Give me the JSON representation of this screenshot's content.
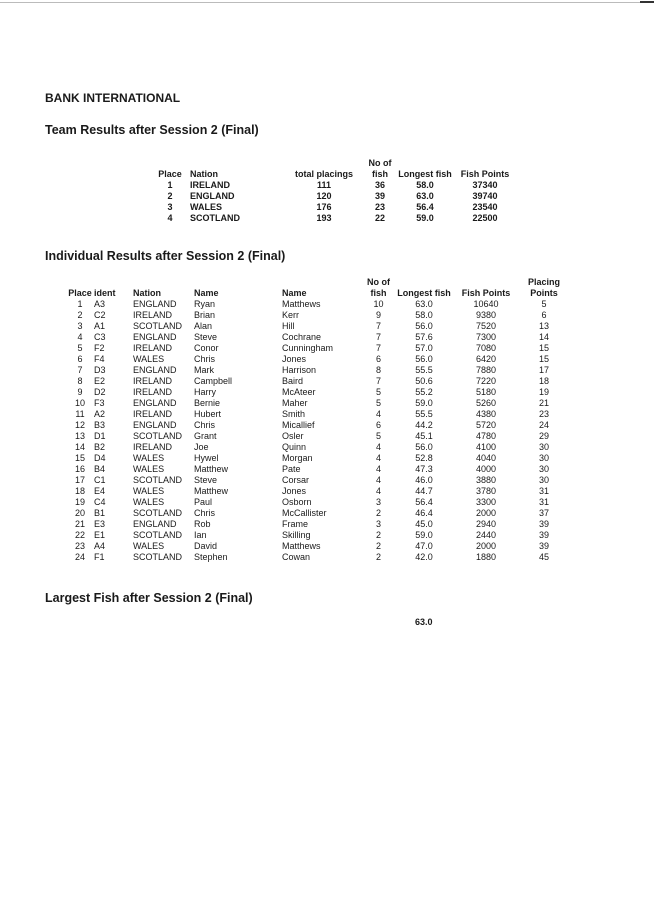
{
  "title": "BANK INTERNATIONAL",
  "team": {
    "heading": "Team Results after Session 2 (Final)",
    "header_top": {
      "fish": "No of"
    },
    "headers": [
      "Place",
      "Nation",
      "total placings",
      "fish",
      "Longest fish",
      "Fish Points"
    ],
    "rows": [
      [
        "1",
        "IRELAND",
        "111",
        "36",
        "58.0",
        "37340"
      ],
      [
        "2",
        "ENGLAND",
        "120",
        "39",
        "63.0",
        "39740"
      ],
      [
        "3",
        "WALES",
        "176",
        "23",
        "56.4",
        "23540"
      ],
      [
        "4",
        "SCOTLAND",
        "193",
        "22",
        "59.0",
        "22500"
      ]
    ]
  },
  "individual": {
    "heading": "Individual Results after Session 2 (Final)",
    "header_top": {
      "fish": "No of",
      "placing": "Placing"
    },
    "headers": [
      "Place",
      "ident",
      "Nation",
      "Name",
      "Name",
      "fish",
      "Longest fish",
      "Fish Points",
      "Points"
    ],
    "rows": [
      [
        "1",
        "A3",
        "ENGLAND",
        "Ryan",
        "Matthews",
        "10",
        "63.0",
        "10640",
        "5"
      ],
      [
        "2",
        "C2",
        "IRELAND",
        "Brian",
        "Kerr",
        "9",
        "58.0",
        "9380",
        "6"
      ],
      [
        "3",
        "A1",
        "SCOTLAND",
        "Alan",
        "Hill",
        "7",
        "56.0",
        "7520",
        "13"
      ],
      [
        "4",
        "C3",
        "ENGLAND",
        "Steve",
        "Cochrane",
        "7",
        "57.6",
        "7300",
        "14"
      ],
      [
        "5",
        "F2",
        "IRELAND",
        "Conor",
        "Cunningham",
        "7",
        "57.0",
        "7080",
        "15"
      ],
      [
        "6",
        "F4",
        "WALES",
        "Chris",
        "Jones",
        "6",
        "56.0",
        "6420",
        "15"
      ],
      [
        "7",
        "D3",
        "ENGLAND",
        "Mark",
        "Harrison",
        "8",
        "55.5",
        "7880",
        "17"
      ],
      [
        "8",
        "E2",
        "IRELAND",
        "Campbell",
        "Baird",
        "7",
        "50.6",
        "7220",
        "18"
      ],
      [
        "9",
        "D2",
        "IRELAND",
        "Harry",
        "McAteer",
        "5",
        "55.2",
        "5180",
        "19"
      ],
      [
        "10",
        "F3",
        "ENGLAND",
        "Bernie",
        "Maher",
        "5",
        "59.0",
        "5260",
        "21"
      ],
      [
        "11",
        "A2",
        "IRELAND",
        "Hubert",
        "Smith",
        "4",
        "55.5",
        "4380",
        "23"
      ],
      [
        "12",
        "B3",
        "ENGLAND",
        "Chris",
        "Micallief",
        "6",
        "44.2",
        "5720",
        "24"
      ],
      [
        "13",
        "D1",
        "SCOTLAND",
        "Grant",
        "Osler",
        "5",
        "45.1",
        "4780",
        "29"
      ],
      [
        "14",
        "B2",
        "IRELAND",
        "Joe",
        "Quinn",
        "4",
        "56.0",
        "4100",
        "30"
      ],
      [
        "15",
        "D4",
        "WALES",
        "Hywel",
        "Morgan",
        "4",
        "52.8",
        "4040",
        "30"
      ],
      [
        "16",
        "B4",
        "WALES",
        "Matthew",
        "Pate",
        "4",
        "47.3",
        "4000",
        "30"
      ],
      [
        "17",
        "C1",
        "SCOTLAND",
        "Steve",
        "Corsar",
        "4",
        "46.0",
        "3880",
        "30"
      ],
      [
        "18",
        "E4",
        "WALES",
        "Matthew",
        "Jones",
        "4",
        "44.7",
        "3780",
        "31"
      ],
      [
        "19",
        "C4",
        "WALES",
        "Paul",
        "Osborn",
        "3",
        "56.4",
        "3300",
        "31"
      ],
      [
        "20",
        "B1",
        "SCOTLAND",
        "Chris",
        "McCallister",
        "2",
        "46.4",
        "2000",
        "37"
      ],
      [
        "21",
        "E3",
        "ENGLAND",
        "Rob",
        "Frame",
        "3",
        "45.0",
        "2940",
        "39"
      ],
      [
        "22",
        "E1",
        "SCOTLAND",
        "Ian",
        "Skilling",
        "2",
        "59.0",
        "2440",
        "39"
      ],
      [
        "23",
        "A4",
        "WALES",
        "David",
        "Matthews",
        "2",
        "47.0",
        "2000",
        "39"
      ],
      [
        "24",
        "F1",
        "SCOTLAND",
        "Stephen",
        "Cowan",
        "2",
        "42.0",
        "1880",
        "45"
      ]
    ]
  },
  "largest": {
    "heading": "Largest Fish after Session 2 (Final)",
    "value": "63.0"
  }
}
